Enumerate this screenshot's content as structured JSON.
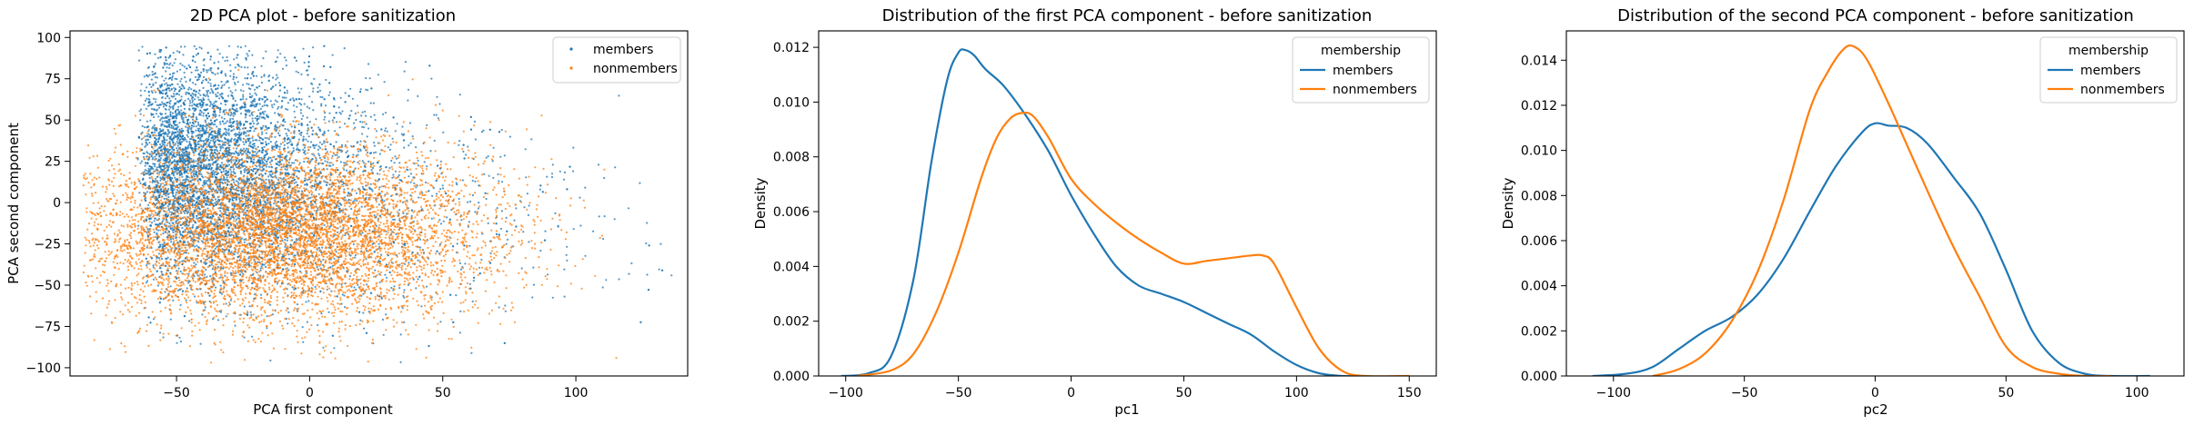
{
  "colors": {
    "members": "#1f77b4",
    "nonmembers": "#ff7f0e"
  },
  "chart_data": [
    {
      "type": "scatter",
      "title": "2D PCA plot - before sanitization",
      "xlabel": "PCA first component",
      "ylabel": "PCA second component",
      "xlim": [
        -90,
        142
      ],
      "ylim": [
        -105,
        104
      ],
      "xticks": [
        -50,
        0,
        50,
        100
      ],
      "yticks": [
        -100,
        -75,
        -50,
        -25,
        0,
        25,
        50,
        75,
        100
      ],
      "legend": {
        "placement": "top-right",
        "entries": [
          "members",
          "nonmembers"
        ]
      },
      "series": [
        {
          "name": "members",
          "description_points": [
            [
              -80,
              10
            ],
            [
              -70,
              40
            ],
            [
              -60,
              70
            ],
            [
              -45,
              85
            ],
            [
              -20,
              92
            ],
            [
              0,
              80
            ],
            [
              30,
              70
            ],
            [
              60,
              55
            ],
            [
              90,
              30
            ],
            [
              110,
              10
            ],
            [
              -65,
              -70
            ],
            [
              -50,
              -85
            ],
            [
              -30,
              -55
            ],
            [
              0,
              -40
            ],
            [
              40,
              -30
            ]
          ]
        },
        {
          "name": "nonmembers",
          "description_points": [
            [
              -80,
              55
            ],
            [
              -60,
              -90
            ],
            [
              -40,
              -95
            ],
            [
              0,
              -60
            ],
            [
              50,
              -45
            ],
            [
              90,
              -40
            ],
            [
              120,
              -25
            ],
            [
              135,
              -20
            ],
            [
              110,
              20
            ],
            [
              70,
              45
            ],
            [
              30,
              60
            ],
            [
              -10,
              75
            ],
            [
              -40,
              20
            ],
            [
              -20,
              -20
            ],
            [
              20,
              0
            ]
          ]
        }
      ]
    },
    {
      "type": "line",
      "title": "Distribution of the first PCA component - before sanitization",
      "xlabel": "pc1",
      "ylabel": "Density",
      "xlim": [
        -112,
        162
      ],
      "ylim": [
        0,
        0.0126
      ],
      "xticks": [
        -100,
        -50,
        0,
        50,
        100,
        150
      ],
      "yticks": [
        0.0,
        0.002,
        0.004,
        0.006,
        0.008,
        0.01,
        0.012
      ],
      "ytick_labels": [
        "0.000",
        "0.002",
        "0.004",
        "0.006",
        "0.008",
        "0.010",
        "0.012"
      ],
      "legend": {
        "placement": "top-right",
        "title": "membership",
        "entries": [
          "members",
          "nonmembers"
        ]
      },
      "series": [
        {
          "name": "members",
          "x": [
            -102,
            -90,
            -80,
            -70,
            -62,
            -55,
            -50,
            -47,
            -43,
            -38,
            -30,
            -20,
            -10,
            0,
            10,
            20,
            30,
            40,
            50,
            60,
            70,
            80,
            90,
            100,
            110,
            120,
            130
          ],
          "y": [
            0.0,
            0.0001,
            0.0007,
            0.0035,
            0.0078,
            0.0108,
            0.0118,
            0.0119,
            0.0117,
            0.0112,
            0.0106,
            0.0095,
            0.0082,
            0.0066,
            0.0052,
            0.004,
            0.0033,
            0.003,
            0.0027,
            0.0023,
            0.0019,
            0.0015,
            0.0009,
            0.0004,
            0.0001,
            0.0,
            0.0
          ]
        },
        {
          "name": "nonmembers",
          "x": [
            -95,
            -80,
            -70,
            -60,
            -50,
            -40,
            -33,
            -27,
            -22,
            -17,
            -10,
            0,
            10,
            20,
            30,
            40,
            50,
            60,
            70,
            80,
            85,
            90,
            100,
            110,
            120,
            130,
            150
          ],
          "y": [
            0.0,
            0.0002,
            0.0008,
            0.0023,
            0.0045,
            0.0072,
            0.0087,
            0.0094,
            0.0096,
            0.0095,
            0.0087,
            0.0072,
            0.0063,
            0.0056,
            0.005,
            0.0045,
            0.0041,
            0.0042,
            0.0043,
            0.0044,
            0.0044,
            0.0041,
            0.0025,
            0.001,
            0.0002,
            0.0,
            0.0
          ]
        }
      ]
    },
    {
      "type": "line",
      "title": "Distribution of the second PCA component - before sanitization",
      "xlabel": "pc2",
      "ylabel": "Density",
      "xlim": [
        -118,
        118
      ],
      "ylim": [
        0,
        0.0153
      ],
      "xticks": [
        -100,
        -50,
        0,
        50,
        100
      ],
      "yticks": [
        0.0,
        0.002,
        0.004,
        0.006,
        0.008,
        0.01,
        0.012,
        0.014
      ],
      "ytick_labels": [
        "0.000",
        "0.002",
        "0.004",
        "0.006",
        "0.008",
        "0.010",
        "0.012",
        "0.014"
      ],
      "legend": {
        "placement": "top-right",
        "title": "membership",
        "entries": [
          "members",
          "nonmembers"
        ]
      },
      "series": [
        {
          "name": "members",
          "x": [
            -108,
            -95,
            -85,
            -75,
            -65,
            -55,
            -45,
            -35,
            -25,
            -15,
            -5,
            0,
            5,
            12,
            20,
            30,
            40,
            50,
            60,
            70,
            80,
            90,
            105
          ],
          "y": [
            0.0,
            0.0001,
            0.0004,
            0.0012,
            0.002,
            0.0026,
            0.0036,
            0.0052,
            0.0073,
            0.0093,
            0.0108,
            0.0112,
            0.0111,
            0.011,
            0.0103,
            0.0088,
            0.0072,
            0.0047,
            0.002,
            0.0006,
            0.0001,
            0.0,
            0.0
          ]
        },
        {
          "name": "nonmembers",
          "x": [
            -85,
            -75,
            -65,
            -55,
            -45,
            -35,
            -25,
            -18,
            -12,
            -8,
            -3,
            5,
            10,
            20,
            30,
            40,
            50,
            60,
            70,
            80,
            90
          ],
          "y": [
            0.0,
            0.0003,
            0.001,
            0.0024,
            0.0046,
            0.0078,
            0.0118,
            0.0135,
            0.0145,
            0.0146,
            0.014,
            0.0121,
            0.0108,
            0.0082,
            0.0057,
            0.0035,
            0.0013,
            0.0004,
            0.0001,
            0.0,
            0.0
          ]
        }
      ]
    }
  ]
}
